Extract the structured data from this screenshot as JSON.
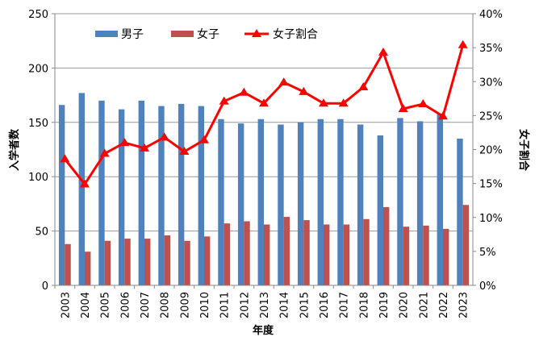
{
  "chart_data": {
    "type": "bar",
    "categories": [
      "2003",
      "2004",
      "2005",
      "2006",
      "2007",
      "2008",
      "2009",
      "2010",
      "2011",
      "2012",
      "2013",
      "2014",
      "2015",
      "2016",
      "2017",
      "2018",
      "2019",
      "2020",
      "2021",
      "2022",
      "2023"
    ],
    "series": [
      {
        "name": "男子",
        "kind": "bar",
        "axis": "left",
        "color": "#4F81BD",
        "values": [
          166,
          177,
          170,
          162,
          170,
          165,
          167,
          165,
          153,
          149,
          153,
          148,
          150,
          153,
          153,
          148,
          138,
          154,
          151,
          158,
          135
        ]
      },
      {
        "name": "女子",
        "kind": "bar",
        "axis": "left",
        "color": "#C0504D",
        "values": [
          38,
          31,
          41,
          43,
          43,
          46,
          41,
          45,
          57,
          59,
          56,
          63,
          60,
          56,
          56,
          61,
          72,
          54,
          55,
          52,
          74
        ]
      },
      {
        "name": "女子割合",
        "kind": "line",
        "axis": "right",
        "color": "#FF0000",
        "values": [
          18.6,
          14.9,
          19.4,
          21.0,
          20.2,
          21.8,
          19.7,
          21.4,
          27.1,
          28.4,
          26.8,
          29.9,
          28.5,
          26.8,
          26.8,
          29.2,
          34.3,
          26.0,
          26.7,
          24.9,
          35.4
        ]
      }
    ],
    "xlabel": "年度",
    "ylabel": "入学者数",
    "y2label": "女子割合",
    "ylim": [
      0,
      250
    ],
    "yticks": [
      "0",
      "50",
      "100",
      "150",
      "200",
      "250"
    ],
    "y2lim": [
      0,
      40
    ],
    "y2ticks": [
      "0%",
      "5%",
      "10%",
      "15%",
      "20%",
      "25%",
      "30%",
      "35%",
      "40%"
    ],
    "grid": true,
    "legend_position": "top-left"
  }
}
